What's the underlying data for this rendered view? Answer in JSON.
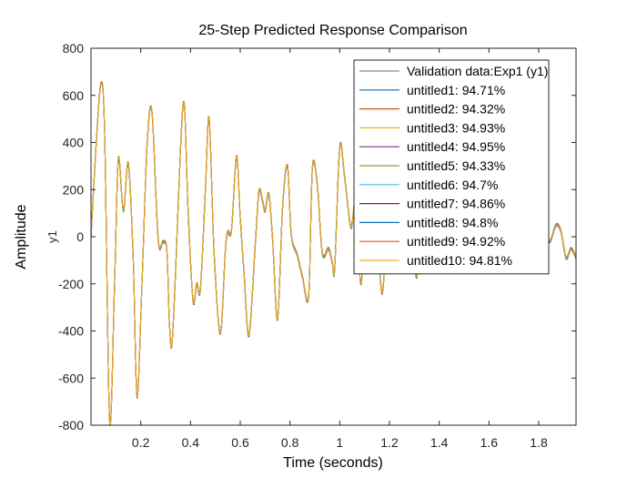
{
  "chart_data": {
    "type": "line",
    "title": "25-Step Predicted Response Comparison",
    "xlabel": "Time (seconds)",
    "ylabel": "Amplitude",
    "output_label": "y1",
    "xlim": [
      0,
      1.95
    ],
    "ylim": [
      -800,
      800
    ],
    "xticks": [
      "0.2",
      "0.4",
      "0.6",
      "0.8",
      "1",
      "1.2",
      "1.4",
      "1.6",
      "1.8"
    ],
    "xtick_values": [
      0.2,
      0.4,
      0.6,
      0.8,
      1.0,
      1.2,
      1.4,
      1.6,
      1.8
    ],
    "yticks": [
      "-800",
      "-600",
      "-400",
      "-200",
      "0",
      "200",
      "400",
      "600",
      "800"
    ],
    "ytick_values": [
      -800,
      -600,
      -400,
      -200,
      0,
      200,
      400,
      600,
      800
    ],
    "grid": false,
    "legend_position": "top-right",
    "base_signal": {
      "t": [
        0,
        0.02,
        0.04,
        0.055,
        0.075,
        0.095,
        0.11,
        0.13,
        0.15,
        0.17,
        0.185,
        0.205,
        0.225,
        0.245,
        0.27,
        0.29,
        0.305,
        0.315,
        0.325,
        0.34,
        0.36,
        0.375,
        0.39,
        0.41,
        0.425,
        0.44,
        0.46,
        0.475,
        0.495,
        0.52,
        0.54,
        0.55,
        0.565,
        0.585,
        0.6,
        0.615,
        0.635,
        0.66,
        0.675,
        0.69,
        0.7,
        0.715,
        0.73,
        0.75,
        0.77,
        0.79,
        0.805,
        0.83,
        0.85,
        0.875,
        0.89,
        0.91,
        0.93,
        0.955,
        0.97,
        0.98,
        1.0,
        1.02,
        1.045,
        1.065,
        1.085,
        1.105,
        1.12,
        1.145,
        1.17,
        1.195,
        1.215,
        1.24,
        1.265,
        1.29,
        1.31,
        1.33,
        1.355,
        1.375,
        1.395,
        1.42,
        1.445,
        1.47,
        1.49,
        1.515,
        1.54,
        1.565,
        1.59,
        1.61,
        1.635,
        1.655,
        1.68,
        1.705,
        1.725,
        1.75,
        1.775,
        1.8,
        1.82,
        1.845,
        1.87,
        1.89,
        1.91,
        1.93,
        1.95
      ],
      "y": [
        0,
        380,
        650,
        430,
        -785,
        -190,
        330,
        110,
        310,
        -100,
        -680,
        -200,
        380,
        530,
        -10,
        -20,
        -60,
        -360,
        -460,
        -150,
        380,
        560,
        120,
        -270,
        -200,
        -220,
        200,
        500,
        -70,
        -410,
        -60,
        20,
        30,
        340,
        80,
        -150,
        -420,
        -40,
        190,
        150,
        110,
        180,
        -10,
        -350,
        120,
        300,
        10,
        -80,
        -170,
        -250,
        290,
        220,
        -70,
        -50,
        -110,
        -130,
        380,
        250,
        40,
        160,
        -200,
        150,
        240,
        160,
        -240,
        130,
        10,
        -100,
        80,
        0,
        -170,
        120,
        -90,
        110,
        60,
        -30,
        50,
        -10,
        40,
        -20,
        30,
        -15,
        25,
        -10,
        20,
        -5,
        15,
        0,
        20,
        -10,
        10,
        0,
        10,
        -20,
        50,
        20,
        -90,
        -50,
        -90
      ]
    },
    "series": [
      {
        "name": "Validation data:Exp1 (y1)",
        "color": "#8c8c8c",
        "offset": 0
      },
      {
        "name": "untitled1: 94.71%",
        "color": "#0072bd",
        "offset": 4
      },
      {
        "name": "untitled2: 94.32%",
        "color": "#d95319",
        "offset": -5
      },
      {
        "name": "untitled3: 94.93%",
        "color": "#edb120",
        "offset": 2
      },
      {
        "name": "untitled4: 94.95%",
        "color": "#7e2f8e",
        "offset": -2
      },
      {
        "name": "untitled5: 94.33%",
        "color": "#77ac30",
        "offset": 5
      },
      {
        "name": "untitled6: 94.7%",
        "color": "#4dbeee",
        "offset": -3
      },
      {
        "name": "untitled7: 94.86%",
        "color": "#a2142f",
        "offset": 3
      },
      {
        "name": "untitled8: 94.8%",
        "color": "#0072bd",
        "offset": -4
      },
      {
        "name": "untitled9: 94.92%",
        "color": "#d95319",
        "offset": 1
      },
      {
        "name": "untitled10: 94.81%",
        "color": "#edb120",
        "offset": 0
      }
    ]
  }
}
